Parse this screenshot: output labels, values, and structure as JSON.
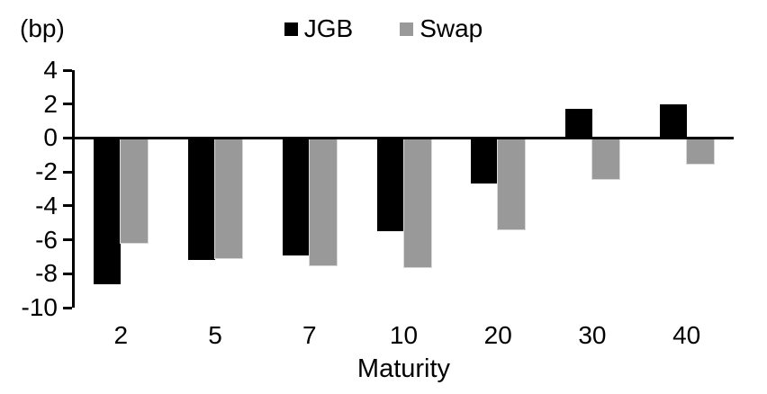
{
  "colors": {
    "jgb": "#000000",
    "swap": "#999999",
    "axis": "#000000",
    "background": "#ffffff"
  },
  "chart_data": {
    "type": "bar",
    "title": "",
    "xlabel": "Maturity",
    "ylabel": "(bp)",
    "ylim": [
      -10,
      4
    ],
    "ytick_step": 2,
    "yticks": [
      4,
      2,
      0,
      -2,
      -4,
      -6,
      -8,
      -10
    ],
    "grid": false,
    "legend_position": "top-center",
    "categories": [
      "2",
      "5",
      "7",
      "10",
      "20",
      "30",
      "40"
    ],
    "series": [
      {
        "name": "JGB",
        "color": "#000000",
        "values": [
          -8.6,
          -7.2,
          -6.9,
          -5.5,
          -2.7,
          1.7,
          2.0
        ]
      },
      {
        "name": "Swap",
        "color": "#999999",
        "values": [
          -6.2,
          -7.1,
          -7.5,
          -7.6,
          -5.4,
          -2.4,
          -1.5
        ]
      }
    ]
  }
}
